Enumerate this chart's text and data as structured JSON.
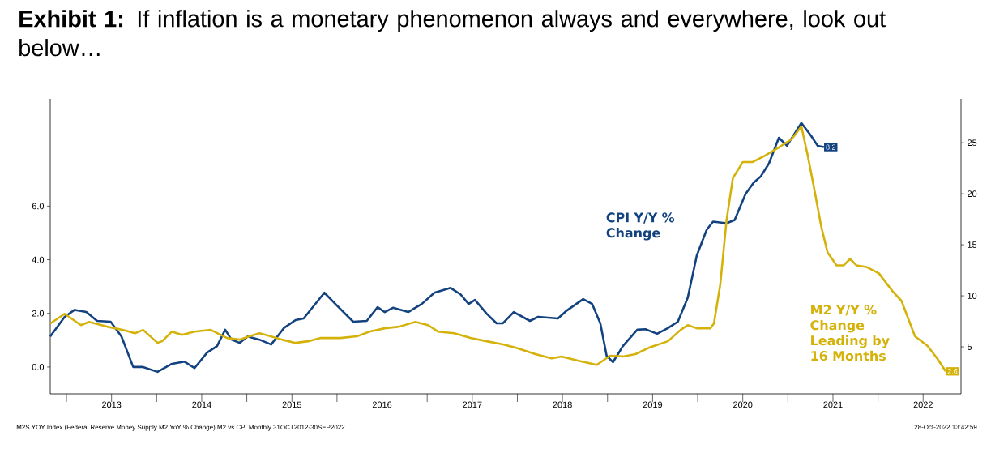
{
  "chart_data": {
    "type": "line",
    "title": "**Exhibit 1:** If inflation is a monetary phenomenon always and everywhere, look out below…",
    "annotations": [
      "M2S YOY Index (Federal Reserve Money Supply M2 YoY % Change) M2 vs CPI Monthly 31OCT2012-30SEP2022",
      "28-Oct-2022 13:42:59"
    ],
    "xlim": [
      2012.82,
      2022.92
    ],
    "xticks": [
      {
        "value": 2013,
        "label": null
      },
      {
        "value": 2014,
        "label": null
      },
      {
        "value": 2015,
        "label": null
      },
      {
        "value": 2016,
        "label": null
      },
      {
        "value": 2017,
        "label": null
      },
      {
        "value": 2018,
        "label": null
      },
      {
        "value": 2019,
        "label": null
      },
      {
        "value": 2020,
        "label": null
      },
      {
        "value": 2021,
        "label": null
      },
      {
        "value": 2022,
        "label": null
      },
      {
        "value": 2013.5,
        "label": "2013"
      },
      {
        "value": 2014.5,
        "label": "2014"
      },
      {
        "value": 2015.5,
        "label": "2015"
      },
      {
        "value": 2016.5,
        "label": "2016"
      },
      {
        "value": 2017.5,
        "label": "2017"
      },
      {
        "value": 2018.5,
        "label": "2018"
      },
      {
        "value": 2019.5,
        "label": "2019"
      },
      {
        "value": 2020.5,
        "label": "2020"
      },
      {
        "value": 2021.5,
        "label": "2021"
      },
      {
        "value": 2022.5,
        "label": "2022"
      }
    ],
    "ylim": [
      -1,
      10
    ],
    "yticks": [
      {
        "value": 0,
        "label": "0.0"
      },
      {
        "value": 2,
        "label": "2.0"
      },
      {
        "value": 4,
        "label": "4.0"
      },
      {
        "value": 6,
        "label": "6.0"
      }
    ],
    "y2lim": [
      0.4,
      29.3
    ],
    "y2ticks": [
      5,
      10,
      15,
      20,
      25
    ],
    "grid": false,
    "legend": false,
    "marker": "none",
    "line_style": "solid",
    "series": [
      {
        "name": "CPI Y/Y % Change",
        "color": "#12427f",
        "x": [
          2012.82,
          2012.98,
          2013.09,
          2013.22,
          2013.34,
          2013.49,
          2013.61,
          2013.74,
          2013.85,
          2014.01,
          2014.17,
          2014.31,
          2014.42,
          2014.56,
          2014.67,
          2014.76,
          2014.83,
          2014.92,
          2015.01,
          2015.14,
          2015.27,
          2015.41,
          2015.54,
          2015.63,
          2015.86,
          2016.0,
          2016.18,
          2016.33,
          2016.45,
          2016.53,
          2016.62,
          2016.79,
          2016.94,
          2017.08,
          2017.26,
          2017.37,
          2017.46,
          2017.53,
          2017.66,
          2017.77,
          2017.84,
          2017.96,
          2018.14,
          2018.23,
          2018.45,
          2018.55,
          2018.73,
          2018.83,
          2018.92,
          2018.99,
          2019.06,
          2019.17,
          2019.33,
          2019.42,
          2019.55,
          2019.67,
          2019.78,
          2019.89,
          2019.99,
          2020.1,
          2020.17,
          2020.32,
          2020.41,
          2020.53,
          2020.62,
          2020.7,
          2020.79,
          2020.9,
          2020.99,
          2021.15,
          2021.26,
          2021.33,
          2021.4
        ],
        "values": [
          1.14,
          1.87,
          2.13,
          2.05,
          1.72,
          1.69,
          1.14,
          0.0,
          0.0,
          -0.18,
          0.12,
          0.2,
          -0.04,
          0.54,
          0.78,
          1.39,
          1.02,
          0.9,
          1.14,
          1.02,
          0.84,
          1.45,
          1.75,
          1.81,
          2.77,
          2.29,
          1.69,
          1.72,
          2.23,
          2.05,
          2.21,
          2.05,
          2.35,
          2.77,
          2.95,
          2.71,
          2.35,
          2.5,
          1.99,
          1.63,
          1.63,
          2.05,
          1.72,
          1.87,
          1.81,
          2.11,
          2.53,
          2.35,
          1.63,
          0.42,
          0.18,
          0.78,
          1.39,
          1.41,
          1.24,
          1.45,
          1.69,
          2.59,
          4.16,
          5.12,
          5.42,
          5.36,
          5.48,
          6.45,
          6.87,
          7.11,
          7.59,
          8.55,
          8.25,
          9.1,
          8.61,
          8.25,
          8.2
        ],
        "value_labels": [
          null,
          null,
          null,
          null,
          null,
          null,
          null,
          null,
          null,
          null,
          null,
          null,
          null,
          null,
          null,
          null,
          null,
          null,
          null,
          null,
          null,
          null,
          null,
          null,
          null,
          null,
          null,
          null,
          null,
          null,
          null,
          null,
          null,
          null,
          null,
          null,
          null,
          null,
          null,
          null,
          null,
          null,
          null,
          null,
          null,
          null,
          null,
          null,
          null,
          null,
          null,
          null,
          null,
          null,
          null,
          null,
          null,
          null,
          null,
          null,
          null,
          null,
          null,
          null,
          null,
          null,
          null,
          null,
          null,
          null,
          null,
          null,
          "8.2"
        ]
      },
      {
        "name": "M2 Y/Y % Change Leading by 16 Months",
        "color": "#d4b20a",
        "axis": "y2",
        "x": [
          2012.82,
          2012.98,
          2013.16,
          2013.25,
          2013.45,
          2013.63,
          2013.76,
          2013.85,
          2014.01,
          2014.06,
          2014.17,
          2014.28,
          2014.42,
          2014.6,
          2014.78,
          2014.92,
          2015.03,
          2015.14,
          2015.21,
          2015.39,
          2015.54,
          2015.68,
          2015.82,
          2016.04,
          2016.22,
          2016.36,
          2016.53,
          2016.69,
          2016.87,
          2017.01,
          2017.12,
          2017.3,
          2017.48,
          2017.66,
          2017.84,
          2017.98,
          2018.2,
          2018.38,
          2018.49,
          2018.67,
          2018.88,
          2019.03,
          2019.17,
          2019.31,
          2019.46,
          2019.67,
          2019.81,
          2019.89,
          2019.99,
          2020.14,
          2020.18,
          2020.25,
          2020.32,
          2020.39,
          2020.5,
          2020.61,
          2020.75,
          2020.9,
          2021.04,
          2021.15,
          2021.22,
          2021.29,
          2021.37,
          2021.44,
          2021.54,
          2021.62,
          2021.69,
          2021.76,
          2021.87,
          2022.01,
          2022.16,
          2022.26,
          2022.41,
          2022.55,
          2022.66,
          2022.75
        ],
        "values": [
          7.29,
          8.24,
          7.13,
          7.45,
          6.98,
          6.66,
          6.34,
          6.66,
          5.39,
          5.55,
          6.5,
          6.18,
          6.5,
          6.66,
          5.87,
          5.71,
          6.03,
          6.34,
          6.18,
          5.71,
          5.39,
          5.55,
          5.87,
          5.87,
          6.03,
          6.5,
          6.82,
          6.98,
          7.45,
          7.13,
          6.5,
          6.34,
          5.87,
          5.55,
          5.24,
          4.92,
          4.29,
          3.87,
          4.06,
          3.65,
          3.24,
          4.13,
          4.06,
          4.29,
          4.92,
          5.55,
          6.66,
          7.13,
          6.82,
          6.82,
          7.29,
          11.09,
          17.42,
          21.53,
          23.11,
          23.11,
          23.75,
          24.54,
          25.33,
          26.6,
          23.75,
          20.59,
          16.79,
          14.25,
          12.99,
          12.99,
          13.62,
          12.99,
          12.83,
          12.2,
          10.46,
          9.51,
          6.03,
          5.08,
          3.81,
          2.6
        ],
        "value_labels": [
          null,
          null,
          null,
          null,
          null,
          null,
          null,
          null,
          null,
          null,
          null,
          null,
          null,
          null,
          null,
          null,
          null,
          null,
          null,
          null,
          null,
          null,
          null,
          null,
          null,
          null,
          null,
          null,
          null,
          null,
          null,
          null,
          null,
          null,
          null,
          null,
          null,
          null,
          null,
          null,
          null,
          null,
          null,
          null,
          null,
          null,
          null,
          null,
          null,
          null,
          null,
          null,
          null,
          null,
          null,
          null,
          null,
          null,
          null,
          null,
          null,
          null,
          null,
          null,
          null,
          null,
          null,
          null,
          null,
          null,
          null,
          null,
          null,
          null,
          null,
          "2.6"
        ]
      }
    ]
  }
}
